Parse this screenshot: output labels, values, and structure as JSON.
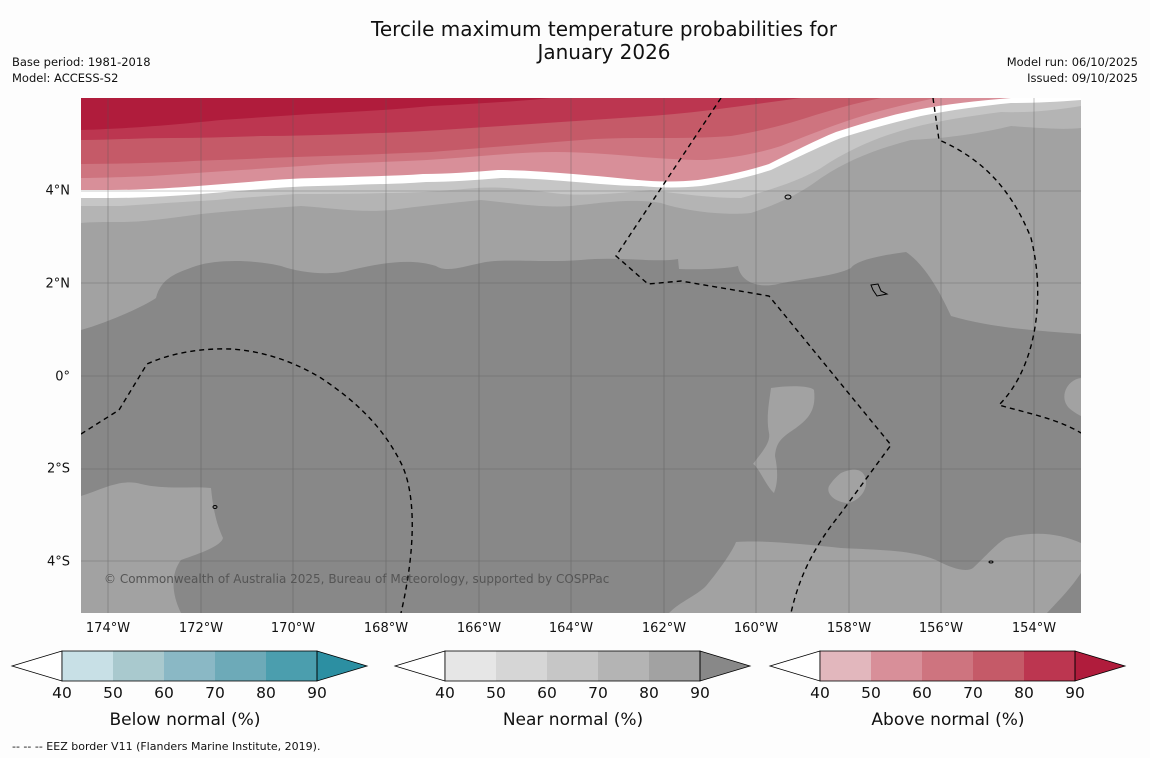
{
  "title": {
    "line1": "Tercile maximum temperature probabilities for",
    "line2": "January 2026"
  },
  "meta_left": {
    "base_period": "Base period: 1981-2018",
    "model": "Model: ACCESS-S2"
  },
  "meta_right": {
    "model_run": "Model run: 06/10/2025",
    "issued": "Issued: 09/10/2025"
  },
  "map": {
    "lon_labels": [
      "174°W",
      "172°W",
      "170°W",
      "168°W",
      "166°W",
      "164°W",
      "162°W",
      "160°W",
      "158°W",
      "156°W",
      "154°W"
    ],
    "lat_labels": [
      "4°N",
      "2°N",
      "0°",
      "2°S",
      "4°S"
    ],
    "copyright": "© Commonwealth of Australia 2025, Bureau of Meteorology, supported by COSPPac",
    "colors": {
      "near_40_50": "#e6e6e6",
      "near_50_60": "#d6d6d6",
      "near_60_70": "#c6c6c6",
      "near_70_80": "#b4b4b4",
      "near_80_90": "#a2a2a2",
      "near_90": "#888888",
      "above_40_50": "#e2b7bd",
      "above_50_60": "#d88f99",
      "above_60_70": "#ce747f",
      "above_70_80": "#c55a68",
      "above_80_90": "#bc3650",
      "above_90": "#b01c3c"
    }
  },
  "legends": [
    {
      "title": "Below normal (%)",
      "ticks": [
        "40",
        "50",
        "60",
        "70",
        "80",
        "90"
      ],
      "colors": [
        "#ffffff",
        "#c8e0e6",
        "#a9c9ce",
        "#8ab8c5",
        "#6daab8",
        "#4b9eae",
        "#2c8fa2"
      ]
    },
    {
      "title": "Near normal (%)",
      "ticks": [
        "40",
        "50",
        "60",
        "70",
        "80",
        "90"
      ],
      "colors": [
        "#ffffff",
        "#e6e6e6",
        "#d6d6d6",
        "#c6c6c6",
        "#b4b4b4",
        "#a2a2a2",
        "#888888"
      ]
    },
    {
      "title": "Above normal (%)",
      "ticks": [
        "40",
        "50",
        "60",
        "70",
        "80",
        "90"
      ],
      "colors": [
        "#ffffff",
        "#e2b7bd",
        "#d88f99",
        "#ce747f",
        "#c55a68",
        "#bc3650",
        "#b01c3c"
      ]
    }
  ],
  "footnote": "--  --  -- EEZ border V11 (Flanders Marine Institute, 2019)."
}
